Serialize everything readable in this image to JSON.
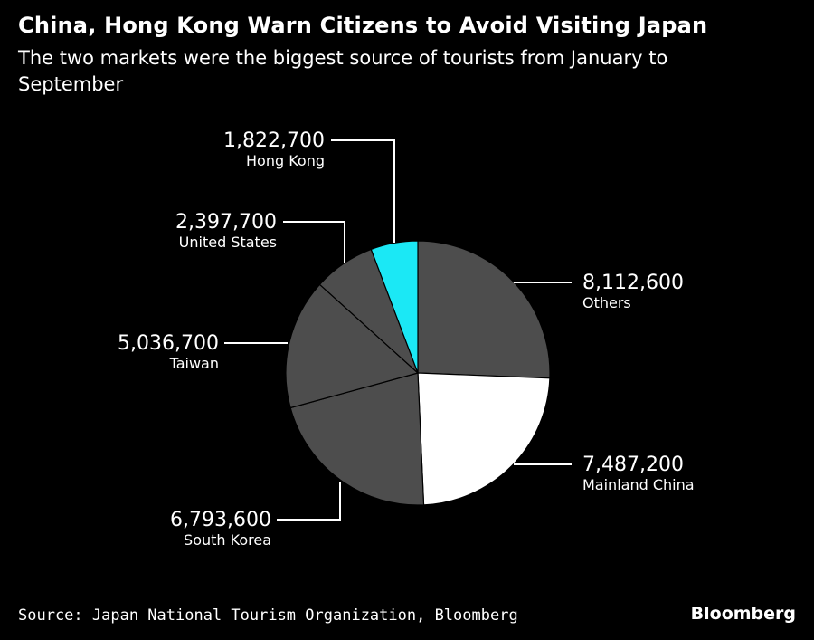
{
  "title": "China, Hong Kong Warn Citizens to Avoid Visiting Japan",
  "subtitle": "The two markets were the biggest source of tourists from January to September",
  "source": "Source: Japan National Tourism Organization, Bloomberg",
  "brand": "Bloomberg",
  "colors": {
    "background": "#000000",
    "default_slice": "#4d4d4d",
    "mainland_china": "#ffffff",
    "hong_kong": "#1be8f5",
    "text": "#ffffff"
  },
  "chart_data": {
    "type": "pie",
    "start": "12 o'clock, clockwise",
    "slices": [
      {
        "label": "Others",
        "value": 8112600,
        "value_label": "8,112,600",
        "color": "#4d4d4d"
      },
      {
        "label": "Mainland China",
        "value": 7487200,
        "value_label": "7,487,200",
        "color": "#ffffff"
      },
      {
        "label": "South Korea",
        "value": 6793600,
        "value_label": "6,793,600",
        "color": "#4d4d4d"
      },
      {
        "label": "Taiwan",
        "value": 5036700,
        "value_label": "5,036,700",
        "color": "#4d4d4d"
      },
      {
        "label": "United States",
        "value": 2397700,
        "value_label": "2,397,700",
        "color": "#4d4d4d"
      },
      {
        "label": "Hong Kong",
        "value": 1822700,
        "value_label": "1,822,700",
        "color": "#1be8f5"
      }
    ]
  }
}
